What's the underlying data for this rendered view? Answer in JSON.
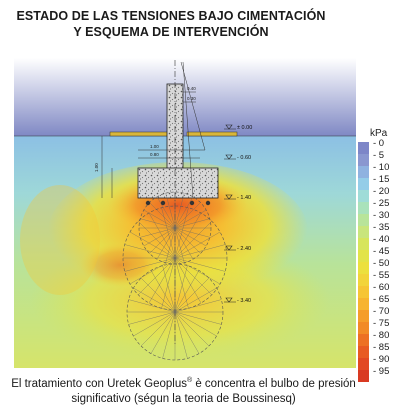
{
  "title": {
    "line1": "ESTADO DE LAS TENSIONES BAJO CIMENTACIÓN",
    "line2": "Y ESQUEMA DE INTERVENCIÓN"
  },
  "elevations": [
    "± 0.00",
    "- 0.60",
    "- 1.40",
    "- 2.40",
    "- 3.40"
  ],
  "dims": {
    "top_a": "0.40",
    "top_b": "0.30",
    "foot_a": "1.00",
    "foot_b": "0.80",
    "height": "1.00"
  },
  "legend": {
    "unit": "kPa",
    "values": [
      "0",
      "5",
      "10",
      "15",
      "20",
      "25",
      "30",
      "35",
      "40",
      "45",
      "50",
      "55",
      "60",
      "65",
      "70",
      "75",
      "80",
      "85",
      "90",
      "95"
    ],
    "colors": [
      "#7d86c8",
      "#8a97d0",
      "#8fb2e0",
      "#94cde8",
      "#9fdcd8",
      "#a9e2bb",
      "#b8e49a",
      "#c9e57c",
      "#d7e55c",
      "#e2e348",
      "#ece03e",
      "#f2d43a",
      "#f6c535",
      "#f7b430",
      "#f59d2a",
      "#f28a26",
      "#ed7023",
      "#e85a22",
      "#e24822",
      "#d93a22"
    ]
  },
  "caption": {
    "before": "El tratamiento con Uretek Geoplus",
    "reg": "®",
    "after": " è concentra el bulbo de presión significativo (ségun la teoria de Boussinesq)"
  }
}
